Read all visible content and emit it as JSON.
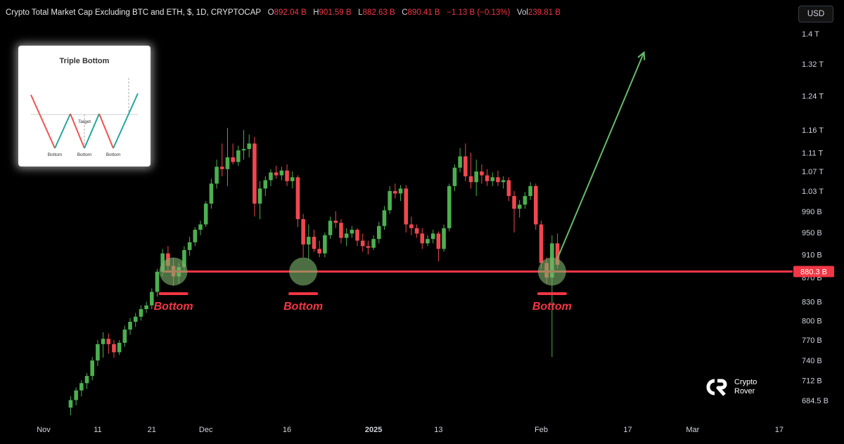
{
  "header": {
    "symbol": "Crypto Total Market Cap Excluding BTC and ETH, $, 1D, CRYPTOCAP",
    "o_label": "O",
    "o_value": "892.04 B",
    "h_label": "H",
    "h_value": "901.59 B",
    "l_label": "L",
    "l_value": "882.63 B",
    "c_label": "C",
    "c_value": "890.41 B",
    "change": "−1.13 B (−0.13%)",
    "vol_label": "Vol",
    "vol_value": "239.81 B"
  },
  "currency_button": "USD",
  "colors": {
    "up": "#4caf50",
    "down": "#f0474f",
    "support": "#f23645",
    "arrow": "#66bb6a",
    "circle": "#7cb26a"
  },
  "inset": {
    "title": "Triple Bottom",
    "target_label": "Target",
    "bottom_labels": [
      "Bottom",
      "Bottom",
      "Bottom"
    ]
  },
  "logo": {
    "line1": "Crypto",
    "line2": "Rover"
  },
  "chart_data": {
    "type": "candlestick",
    "title": "Crypto Total Market Cap Excluding BTC and ETH, $, 1D, CRYPTOCAP",
    "y_scale": "log",
    "y_tick_labels": [
      "1.4 T",
      "1.32 T",
      "1.24 T",
      "1.16 T",
      "1.11 T",
      "1.07 T",
      "1.03 T",
      "990 B",
      "950 B",
      "910 B",
      "870 B",
      "830 B",
      "800 B",
      "770 B",
      "740 B",
      "712 B",
      "684.5 B"
    ],
    "y_tick_values": [
      1400,
      1320,
      1240,
      1160,
      1110,
      1070,
      1030,
      990,
      950,
      910,
      870,
      830,
      800,
      770,
      740,
      712,
      684.5
    ],
    "x_tick_labels": [
      "Nov",
      "11",
      "21",
      "Dec",
      "16",
      "2025",
      "13",
      "Feb",
      "17",
      "Mar",
      "17"
    ],
    "x_tick_dates": [
      "2024-11-01",
      "2024-11-11",
      "2024-11-21",
      "2024-12-01",
      "2024-12-16",
      "2025-01-01",
      "2025-01-13",
      "2025-02-01",
      "2025-02-17",
      "2025-03-01",
      "2025-03-17"
    ],
    "support_level": 880.3,
    "support_label": "880.3 B",
    "annotations": [
      "Bottom",
      "Bottom",
      "Bottom"
    ],
    "annotation_dates": [
      "2024-11-25",
      "2024-12-19",
      "2025-02-03"
    ],
    "projection": {
      "from": {
        "date": "2025-02-04",
        "value": 903
      },
      "to": {
        "date": "2025-02-20",
        "value": 1350
      }
    },
    "candles": [
      {
        "date": "2024-11-06",
        "o": 675,
        "h": 690,
        "l": 665,
        "c": 685
      },
      {
        "date": "2024-11-07",
        "o": 685,
        "h": 702,
        "l": 678,
        "c": 698
      },
      {
        "date": "2024-11-08",
        "o": 698,
        "h": 712,
        "l": 690,
        "c": 708
      },
      {
        "date": "2024-11-09",
        "o": 708,
        "h": 722,
        "l": 700,
        "c": 718
      },
      {
        "date": "2024-11-10",
        "o": 718,
        "h": 745,
        "l": 712,
        "c": 740
      },
      {
        "date": "2024-11-11",
        "o": 740,
        "h": 770,
        "l": 732,
        "c": 764
      },
      {
        "date": "2024-11-12",
        "o": 764,
        "h": 782,
        "l": 744,
        "c": 772
      },
      {
        "date": "2024-11-13",
        "o": 772,
        "h": 780,
        "l": 750,
        "c": 764
      },
      {
        "date": "2024-11-14",
        "o": 764,
        "h": 770,
        "l": 744,
        "c": 752
      },
      {
        "date": "2024-11-15",
        "o": 752,
        "h": 770,
        "l": 748,
        "c": 766
      },
      {
        "date": "2024-11-16",
        "o": 766,
        "h": 792,
        "l": 760,
        "c": 786
      },
      {
        "date": "2024-11-17",
        "o": 786,
        "h": 804,
        "l": 778,
        "c": 798
      },
      {
        "date": "2024-11-18",
        "o": 798,
        "h": 812,
        "l": 790,
        "c": 806
      },
      {
        "date": "2024-11-19",
        "o": 806,
        "h": 824,
        "l": 800,
        "c": 818
      },
      {
        "date": "2024-11-20",
        "o": 818,
        "h": 830,
        "l": 812,
        "c": 824
      },
      {
        "date": "2024-11-21",
        "o": 824,
        "h": 852,
        "l": 818,
        "c": 846
      },
      {
        "date": "2024-11-22",
        "o": 846,
        "h": 885,
        "l": 838,
        "c": 880
      },
      {
        "date": "2024-11-23",
        "o": 880,
        "h": 920,
        "l": 872,
        "c": 912
      },
      {
        "date": "2024-11-24",
        "o": 912,
        "h": 925,
        "l": 880,
        "c": 890
      },
      {
        "date": "2024-11-25",
        "o": 890,
        "h": 904,
        "l": 856,
        "c": 872
      },
      {
        "date": "2024-11-26",
        "o": 872,
        "h": 895,
        "l": 860,
        "c": 888
      },
      {
        "date": "2024-11-27",
        "o": 888,
        "h": 925,
        "l": 882,
        "c": 918
      },
      {
        "date": "2024-11-28",
        "o": 918,
        "h": 942,
        "l": 908,
        "c": 932
      },
      {
        "date": "2024-11-29",
        "o": 932,
        "h": 960,
        "l": 925,
        "c": 955
      },
      {
        "date": "2024-11-30",
        "o": 955,
        "h": 972,
        "l": 945,
        "c": 965
      },
      {
        "date": "2024-12-01",
        "o": 965,
        "h": 1010,
        "l": 960,
        "c": 1005
      },
      {
        "date": "2024-12-02",
        "o": 1005,
        "h": 1055,
        "l": 995,
        "c": 1045
      },
      {
        "date": "2024-12-03",
        "o": 1045,
        "h": 1095,
        "l": 1035,
        "c": 1080
      },
      {
        "date": "2024-12-04",
        "o": 1080,
        "h": 1130,
        "l": 1060,
        "c": 1075
      },
      {
        "date": "2024-12-05",
        "o": 1075,
        "h": 1165,
        "l": 1040,
        "c": 1100
      },
      {
        "date": "2024-12-06",
        "o": 1100,
        "h": 1130,
        "l": 1085,
        "c": 1090
      },
      {
        "date": "2024-12-07",
        "o": 1090,
        "h": 1125,
        "l": 1082,
        "c": 1115
      },
      {
        "date": "2024-12-08",
        "o": 1115,
        "h": 1160,
        "l": 1095,
        "c": 1118
      },
      {
        "date": "2024-12-09",
        "o": 1118,
        "h": 1150,
        "l": 1100,
        "c": 1130
      },
      {
        "date": "2024-12-10",
        "o": 1130,
        "h": 1145,
        "l": 980,
        "c": 1005
      },
      {
        "date": "2024-12-11",
        "o": 1005,
        "h": 1050,
        "l": 975,
        "c": 1035
      },
      {
        "date": "2024-12-12",
        "o": 1035,
        "h": 1060,
        "l": 1020,
        "c": 1052
      },
      {
        "date": "2024-12-13",
        "o": 1052,
        "h": 1075,
        "l": 1040,
        "c": 1068
      },
      {
        "date": "2024-12-14",
        "o": 1068,
        "h": 1082,
        "l": 1055,
        "c": 1062
      },
      {
        "date": "2024-12-15",
        "o": 1062,
        "h": 1080,
        "l": 1052,
        "c": 1072
      },
      {
        "date": "2024-12-16",
        "o": 1072,
        "h": 1085,
        "l": 1040,
        "c": 1050
      },
      {
        "date": "2024-12-17",
        "o": 1050,
        "h": 1070,
        "l": 1035,
        "c": 1058
      },
      {
        "date": "2024-12-18",
        "o": 1058,
        "h": 1062,
        "l": 960,
        "c": 975
      },
      {
        "date": "2024-12-19",
        "o": 975,
        "h": 985,
        "l": 905,
        "c": 928
      },
      {
        "date": "2024-12-20",
        "o": 928,
        "h": 965,
        "l": 900,
        "c": 942
      },
      {
        "date": "2024-12-21",
        "o": 942,
        "h": 955,
        "l": 915,
        "c": 920
      },
      {
        "date": "2024-12-22",
        "o": 920,
        "h": 935,
        "l": 905,
        "c": 912
      },
      {
        "date": "2024-12-23",
        "o": 912,
        "h": 950,
        "l": 905,
        "c": 945
      },
      {
        "date": "2024-12-24",
        "o": 945,
        "h": 980,
        "l": 938,
        "c": 972
      },
      {
        "date": "2024-12-25",
        "o": 972,
        "h": 990,
        "l": 958,
        "c": 968
      },
      {
        "date": "2024-12-26",
        "o": 968,
        "h": 975,
        "l": 930,
        "c": 940
      },
      {
        "date": "2024-12-27",
        "o": 940,
        "h": 958,
        "l": 925,
        "c": 948
      },
      {
        "date": "2024-12-28",
        "o": 948,
        "h": 962,
        "l": 940,
        "c": 955
      },
      {
        "date": "2024-12-29",
        "o": 955,
        "h": 958,
        "l": 925,
        "c": 935
      },
      {
        "date": "2024-12-30",
        "o": 935,
        "h": 948,
        "l": 915,
        "c": 925
      },
      {
        "date": "2024-12-31",
        "o": 925,
        "h": 935,
        "l": 910,
        "c": 922
      },
      {
        "date": "2025-01-01",
        "o": 922,
        "h": 945,
        "l": 918,
        "c": 938
      },
      {
        "date": "2025-01-02",
        "o": 938,
        "h": 970,
        "l": 930,
        "c": 962
      },
      {
        "date": "2025-01-03",
        "o": 962,
        "h": 1000,
        "l": 955,
        "c": 992
      },
      {
        "date": "2025-01-04",
        "o": 992,
        "h": 1040,
        "l": 985,
        "c": 1030
      },
      {
        "date": "2025-01-05",
        "o": 1030,
        "h": 1045,
        "l": 1015,
        "c": 1025
      },
      {
        "date": "2025-01-06",
        "o": 1025,
        "h": 1042,
        "l": 1010,
        "c": 1035
      },
      {
        "date": "2025-01-07",
        "o": 1035,
        "h": 1042,
        "l": 950,
        "c": 965
      },
      {
        "date": "2025-01-08",
        "o": 965,
        "h": 980,
        "l": 945,
        "c": 958
      },
      {
        "date": "2025-01-09",
        "o": 958,
        "h": 965,
        "l": 940,
        "c": 948
      },
      {
        "date": "2025-01-10",
        "o": 948,
        "h": 958,
        "l": 920,
        "c": 930
      },
      {
        "date": "2025-01-11",
        "o": 930,
        "h": 945,
        "l": 925,
        "c": 938
      },
      {
        "date": "2025-01-12",
        "o": 938,
        "h": 955,
        "l": 930,
        "c": 948
      },
      {
        "date": "2025-01-13",
        "o": 948,
        "h": 952,
        "l": 898,
        "c": 920
      },
      {
        "date": "2025-01-14",
        "o": 920,
        "h": 965,
        "l": 915,
        "c": 958
      },
      {
        "date": "2025-01-15",
        "o": 958,
        "h": 1045,
        "l": 952,
        "c": 1040
      },
      {
        "date": "2025-01-16",
        "o": 1040,
        "h": 1085,
        "l": 1030,
        "c": 1078
      },
      {
        "date": "2025-01-17",
        "o": 1078,
        "h": 1120,
        "l": 1068,
        "c": 1102
      },
      {
        "date": "2025-01-18",
        "o": 1102,
        "h": 1130,
        "l": 1050,
        "c": 1060
      },
      {
        "date": "2025-01-19",
        "o": 1060,
        "h": 1110,
        "l": 1035,
        "c": 1048
      },
      {
        "date": "2025-01-20",
        "o": 1048,
        "h": 1095,
        "l": 1020,
        "c": 1070
      },
      {
        "date": "2025-01-21",
        "o": 1070,
        "h": 1085,
        "l": 1045,
        "c": 1062
      },
      {
        "date": "2025-01-22",
        "o": 1062,
        "h": 1075,
        "l": 1040,
        "c": 1050
      },
      {
        "date": "2025-01-23",
        "o": 1050,
        "h": 1068,
        "l": 1040,
        "c": 1058
      },
      {
        "date": "2025-01-24",
        "o": 1058,
        "h": 1072,
        "l": 1040,
        "c": 1048
      },
      {
        "date": "2025-01-25",
        "o": 1048,
        "h": 1060,
        "l": 1035,
        "c": 1052
      },
      {
        "date": "2025-01-26",
        "o": 1052,
        "h": 1058,
        "l": 1010,
        "c": 1020
      },
      {
        "date": "2025-01-27",
        "o": 1020,
        "h": 1030,
        "l": 950,
        "c": 995
      },
      {
        "date": "2025-01-28",
        "o": 995,
        "h": 1012,
        "l": 978,
        "c": 1003
      },
      {
        "date": "2025-01-29",
        "o": 1003,
        "h": 1028,
        "l": 995,
        "c": 1020
      },
      {
        "date": "2025-01-30",
        "o": 1020,
        "h": 1048,
        "l": 1012,
        "c": 1040
      },
      {
        "date": "2025-01-31",
        "o": 1040,
        "h": 1045,
        "l": 955,
        "c": 965
      },
      {
        "date": "2025-02-01",
        "o": 965,
        "h": 972,
        "l": 885,
        "c": 895
      },
      {
        "date": "2025-02-02",
        "o": 895,
        "h": 905,
        "l": 860,
        "c": 870
      },
      {
        "date": "2025-02-03",
        "o": 870,
        "h": 945,
        "l": 745,
        "c": 930
      },
      {
        "date": "2025-02-04",
        "o": 930,
        "h": 948,
        "l": 885,
        "c": 892
      }
    ]
  }
}
